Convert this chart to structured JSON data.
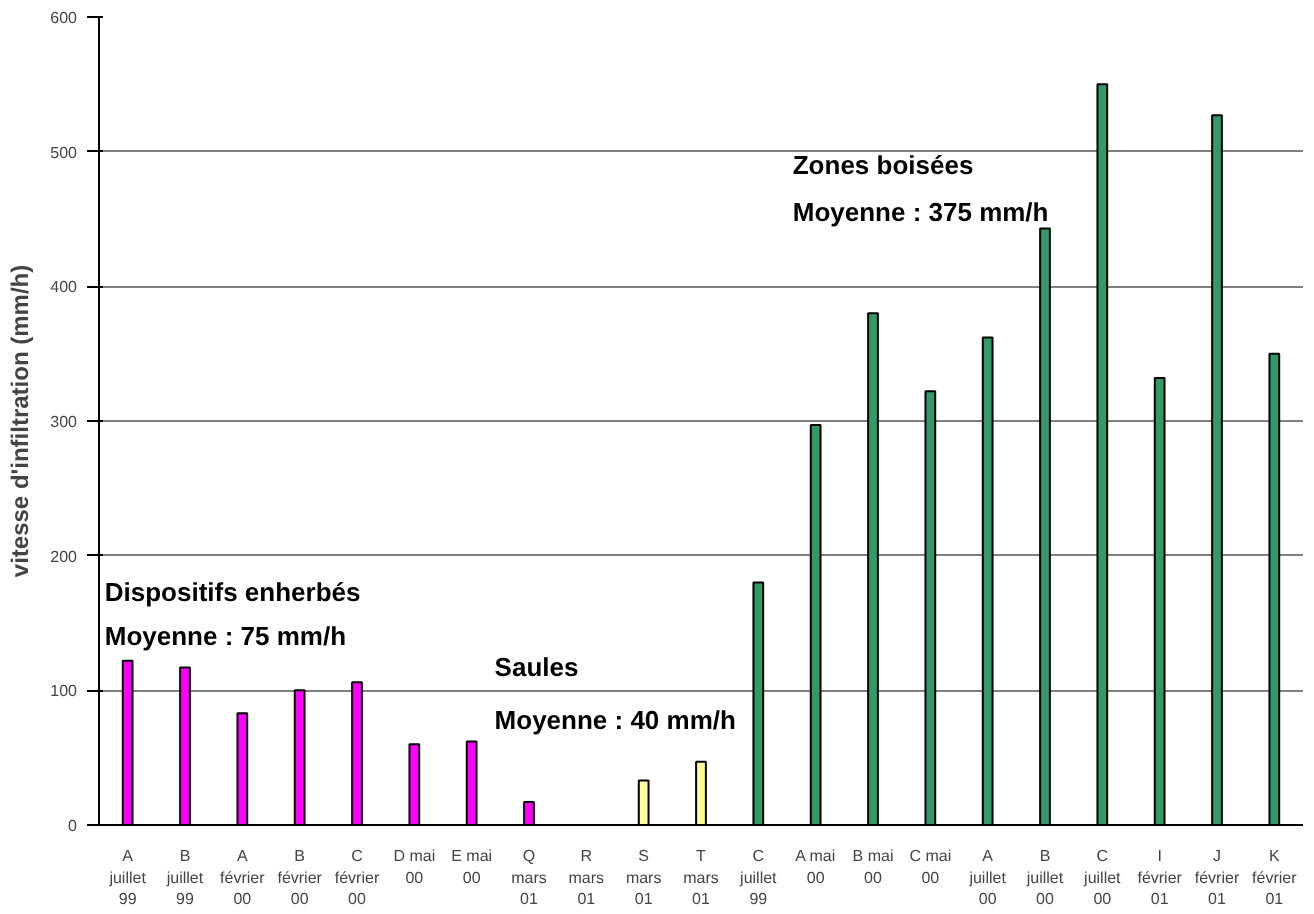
{
  "chart_data": {
    "type": "bar",
    "ylabel": "vitesse d'infiltration (mm/h)",
    "categories": [
      "A juillet 99",
      "B juillet 99",
      "A février 00",
      "B février 00",
      "C février 00",
      "D mai 00",
      "E mai 00",
      "Q mars 01",
      "R mars 01",
      "S mars 01",
      "T mars 01",
      "C juillet 99",
      "A mai 00",
      "B mai 00",
      "C mai 00",
      "A juillet 00",
      "B juillet 00",
      "C juillet 00",
      "I février 01",
      "J février 01",
      "K février 01"
    ],
    "values": [
      122,
      117,
      83,
      100,
      106,
      60,
      62,
      17,
      null,
      33,
      47,
      180,
      297,
      380,
      322,
      362,
      443,
      550,
      332,
      527,
      350
    ],
    "colors": [
      "#ff00ff",
      "#ff00ff",
      "#ff00ff",
      "#ff00ff",
      "#ff00ff",
      "#ff00ff",
      "#ff00ff",
      "#ff00ff",
      "#ffff99",
      "#ffff99",
      "#ffff99",
      "#339966",
      "#339966",
      "#339966",
      "#339966",
      "#339966",
      "#339966",
      "#339966",
      "#339966",
      "#339966",
      "#339966"
    ],
    "ylim": [
      0,
      600
    ],
    "yticks": [
      0,
      100,
      200,
      300,
      400,
      500,
      600
    ],
    "grid": "y",
    "annotations": [
      "Dispositifs enherbés",
      "Moyenne : 75 mm/h",
      "Saules",
      "Moyenne : 40 mm/h",
      "Zones boisées",
      "Moyenne : 375 mm/h"
    ]
  }
}
